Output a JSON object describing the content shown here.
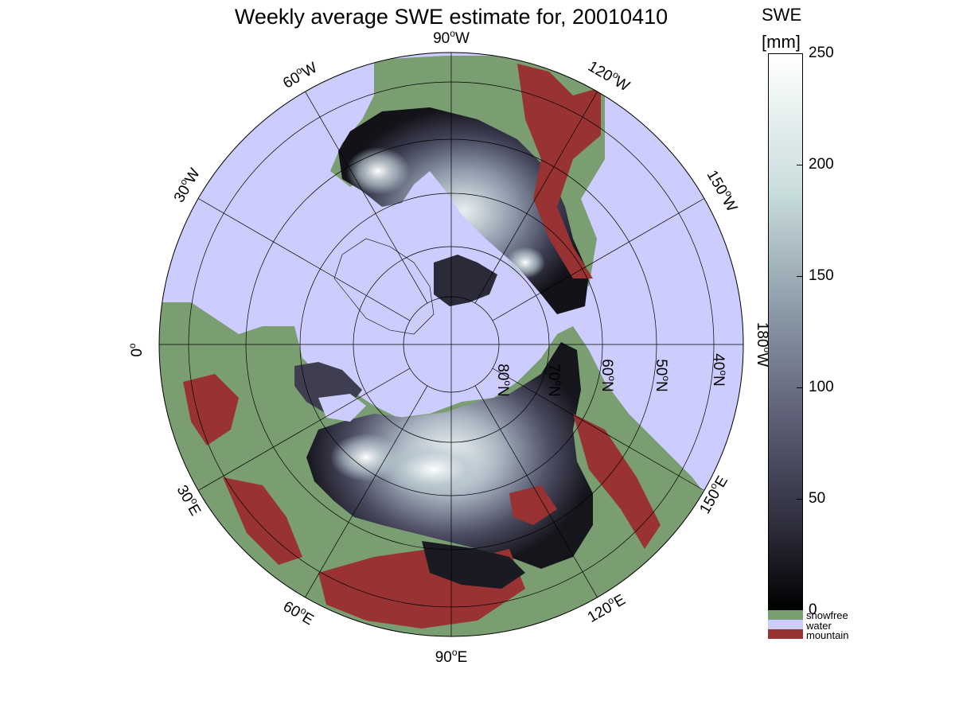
{
  "title": "Weekly average SWE estimate for, 20010410",
  "colorbar": {
    "title_line1": "SWE",
    "title_line2": "[mm]",
    "ticks": [
      "250",
      "200",
      "150",
      "100",
      "50",
      "0"
    ],
    "range": [
      0,
      250
    ],
    "colormap": "bone",
    "gradient_top": "#ffffff",
    "gradient_bottom": "#000000"
  },
  "legend": [
    {
      "label": "snowfree",
      "color": "#7a9e72"
    },
    {
      "label": "water",
      "color": "#ccccfe"
    },
    {
      "label": "mountain",
      "color": "#993333"
    }
  ],
  "map": {
    "projection": "north polar stereographic",
    "ocean_color": "#ccccfe",
    "land_color": "#7a9e72",
    "mountain_color": "#993333",
    "longitude_labels": [
      {
        "deg": "90",
        "hemi": "W"
      },
      {
        "deg": "120",
        "hemi": "W"
      },
      {
        "deg": "150",
        "hemi": "W"
      },
      {
        "deg": "180",
        "hemi": "W"
      },
      {
        "deg": "150",
        "hemi": "E"
      },
      {
        "deg": "120",
        "hemi": "E"
      },
      {
        "deg": "90",
        "hemi": "E"
      },
      {
        "deg": "60",
        "hemi": "E"
      },
      {
        "deg": "30",
        "hemi": "E"
      },
      {
        "deg": "0",
        "hemi": ""
      },
      {
        "deg": "30",
        "hemi": "W"
      },
      {
        "deg": "60",
        "hemi": "W"
      }
    ],
    "latitude_labels": [
      {
        "deg": "80",
        "hemi": "N"
      },
      {
        "deg": "70",
        "hemi": "N"
      },
      {
        "deg": "60",
        "hemi": "N"
      },
      {
        "deg": "50",
        "hemi": "N"
      },
      {
        "deg": "40",
        "hemi": "N"
      }
    ]
  }
}
